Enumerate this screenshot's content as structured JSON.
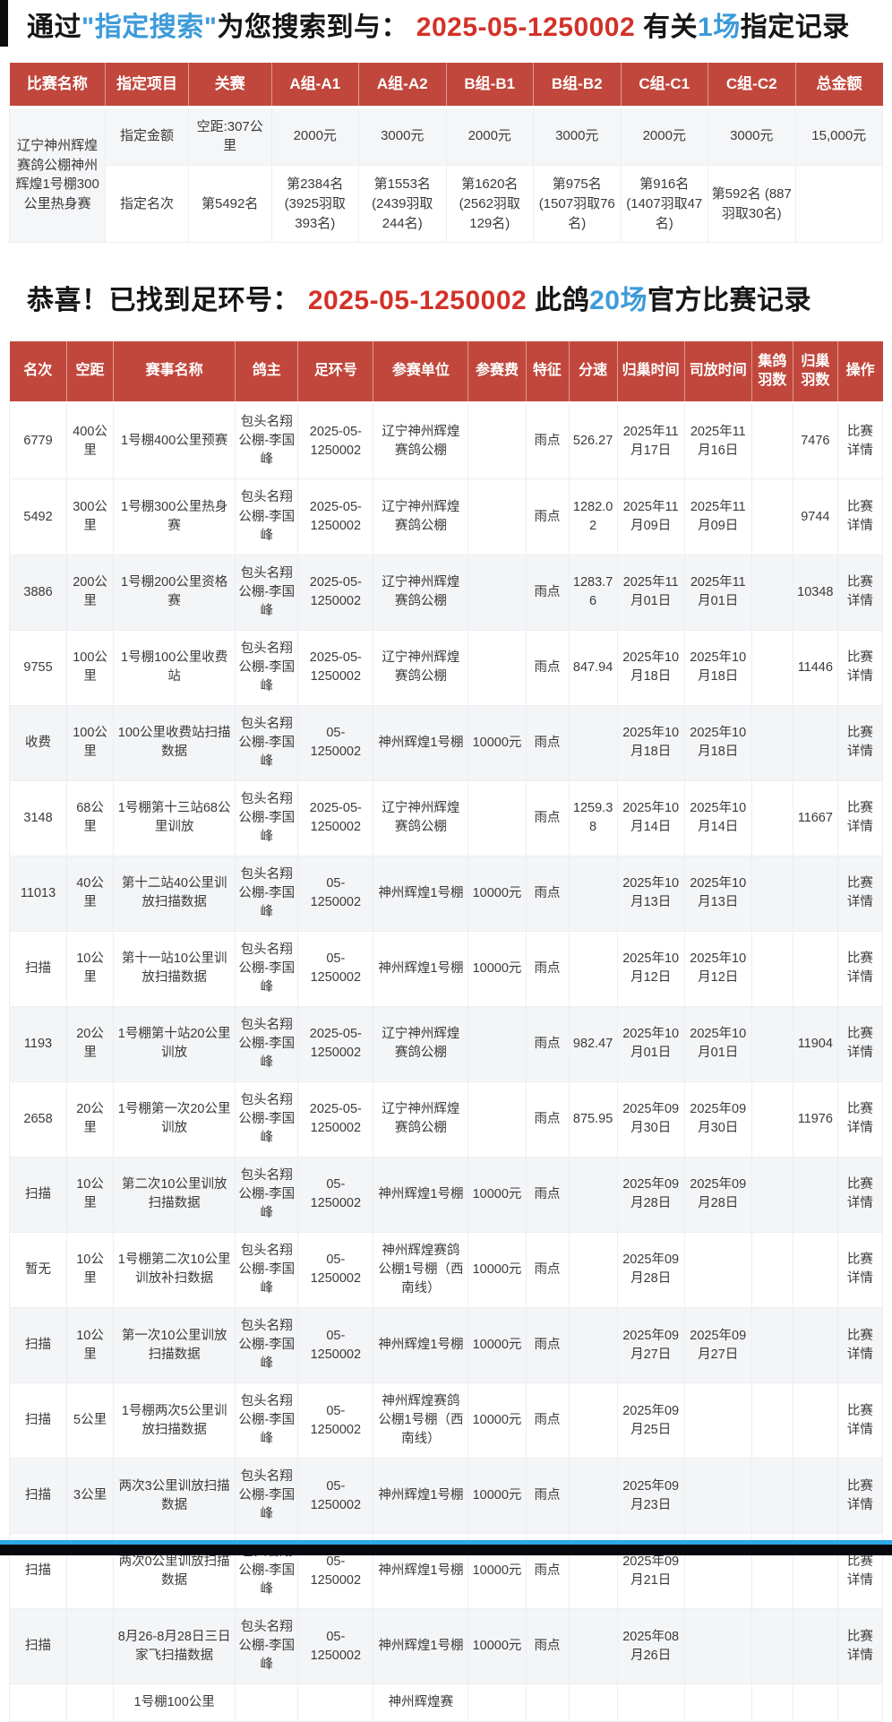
{
  "colors": {
    "header_red": "#c1473c",
    "accent_red": "#d23229",
    "accent_blue": "#3d9bd9",
    "stripe": "#f4f5f7"
  },
  "header1": {
    "parts": [
      {
        "t": "通过",
        "c": "dark"
      },
      {
        "t": "\"指定搜索\"",
        "c": "blue"
      },
      {
        "t": "为您搜索到与： ",
        "c": "dark"
      },
      {
        "t": "2025-05-1250002",
        "c": "red"
      },
      {
        "t": " 有关",
        "c": "dark"
      },
      {
        "t": "1场",
        "c": "blue"
      },
      {
        "t": "指定记录",
        "c": "dark"
      }
    ]
  },
  "table1": {
    "headers": [
      "比赛名称",
      "指定项目",
      "关赛",
      "A组-A1",
      "A组-A2",
      "B组-B1",
      "B组-B2",
      "C组-C1",
      "C组-C2",
      "总金额"
    ],
    "race_name": "辽宁神州辉煌赛鸽公棚神州辉煌1号棚300公里热身赛",
    "row_money": [
      "指定金额",
      "空距:307公里",
      "2000元",
      "3000元",
      "2000元",
      "3000元",
      "2000元",
      "3000元",
      "15,000元"
    ],
    "row_rank": [
      "指定名次",
      "第5492名",
      "第2384名 (3925羽取393名)",
      "第1553名 (2439羽取244名)",
      "第1620名 (2562羽取129名)",
      "第975名 (1507羽取76名)",
      "第916名 (1407羽取47名)",
      "第592名 (887羽取30名)",
      ""
    ]
  },
  "header2": {
    "parts": [
      {
        "t": "恭喜！已找到足环号： ",
        "c": "dark"
      },
      {
        "t": "2025-05-1250002",
        "c": "red"
      },
      {
        "t": " 此鸽",
        "c": "dark"
      },
      {
        "t": "20场",
        "c": "blue"
      },
      {
        "t": "官方比赛记录",
        "c": "dark"
      }
    ]
  },
  "table2": {
    "headers": [
      "名次",
      "空距",
      "赛事名称",
      "鸽主",
      "足环号",
      "参赛单位",
      "参赛费",
      "特征",
      "分速",
      "归巢时间",
      "司放时间",
      "集鸽羽数",
      "归巢羽数",
      "操作"
    ],
    "detail_label": "比赛详情",
    "rows": [
      [
        "6779",
        "400公里",
        "1号棚400公里预赛",
        "包头名翔公棚-李国峰",
        "2025-05-1250002",
        "辽宁神州辉煌赛鸽公棚",
        "",
        "雨点",
        "526.27",
        "2025年11月17日",
        "2025年11月16日",
        "",
        "7476",
        "比赛详情"
      ],
      [
        "5492",
        "300公里",
        "1号棚300公里热身赛",
        "包头名翔公棚-李国峰",
        "2025-05-1250002",
        "辽宁神州辉煌赛鸽公棚",
        "",
        "雨点",
        "1282.02",
        "2025年11月09日",
        "2025年11月09日",
        "",
        "9744",
        "比赛详情"
      ],
      [
        "3886",
        "200公里",
        "1号棚200公里资格赛",
        "包头名翔公棚-李国峰",
        "2025-05-1250002",
        "辽宁神州辉煌赛鸽公棚",
        "",
        "雨点",
        "1283.76",
        "2025年11月01日",
        "2025年11月01日",
        "",
        "10348",
        "比赛详情"
      ],
      [
        "9755",
        "100公里",
        "1号棚100公里收费站",
        "包头名翔公棚-李国峰",
        "2025-05-1250002",
        "辽宁神州辉煌赛鸽公棚",
        "",
        "雨点",
        "847.94",
        "2025年10月18日",
        "2025年10月18日",
        "",
        "11446",
        "比赛详情"
      ],
      [
        "收费",
        "100公里",
        "100公里收费站扫描数据",
        "包头名翔公棚-李国峰",
        "05-1250002",
        "神州辉煌1号棚",
        "10000元",
        "雨点",
        "",
        "2025年10月18日",
        "2025年10月18日",
        "",
        "",
        "比赛详情"
      ],
      [
        "3148",
        "68公里",
        "1号棚第十三站68公里训放",
        "包头名翔公棚-李国峰",
        "2025-05-1250002",
        "辽宁神州辉煌赛鸽公棚",
        "",
        "雨点",
        "1259.38",
        "2025年10月14日",
        "2025年10月14日",
        "",
        "11667",
        "比赛详情"
      ],
      [
        "11013",
        "40公里",
        "第十二站40公里训放扫描数据",
        "包头名翔公棚-李国峰",
        "05-1250002",
        "神州辉煌1号棚",
        "10000元",
        "雨点",
        "",
        "2025年10月13日",
        "2025年10月13日",
        "",
        "",
        "比赛详情"
      ],
      [
        "扫描",
        "10公里",
        "第十一站10公里训放扫描数据",
        "包头名翔公棚-李国峰",
        "05-1250002",
        "神州辉煌1号棚",
        "10000元",
        "雨点",
        "",
        "2025年10月12日",
        "2025年10月12日",
        "",
        "",
        "比赛详情"
      ],
      [
        "1193",
        "20公里",
        "1号棚第十站20公里训放",
        "包头名翔公棚-李国峰",
        "2025-05-1250002",
        "辽宁神州辉煌赛鸽公棚",
        "",
        "雨点",
        "982.47",
        "2025年10月01日",
        "2025年10月01日",
        "",
        "11904",
        "比赛详情"
      ],
      [
        "2658",
        "20公里",
        "1号棚第一次20公里训放",
        "包头名翔公棚-李国峰",
        "2025-05-1250002",
        "辽宁神州辉煌赛鸽公棚",
        "",
        "雨点",
        "875.95",
        "2025年09月30日",
        "2025年09月30日",
        "",
        "11976",
        "比赛详情"
      ],
      [
        "扫描",
        "10公里",
        "第二次10公里训放扫描数据",
        "包头名翔公棚-李国峰",
        "05-1250002",
        "神州辉煌1号棚",
        "10000元",
        "雨点",
        "",
        "2025年09月28日",
        "2025年09月28日",
        "",
        "",
        "比赛详情"
      ],
      [
        "暂无",
        "10公里",
        "1号棚第二次10公里训放补扫数据",
        "包头名翔公棚-李国峰",
        "05-1250002",
        "神州辉煌赛鸽公棚1号棚（西南线）",
        "10000元",
        "雨点",
        "",
        "2025年09月28日",
        "",
        "",
        "",
        "比赛详情"
      ],
      [
        "扫描",
        "10公里",
        "第一次10公里训放扫描数据",
        "包头名翔公棚-李国峰",
        "05-1250002",
        "神州辉煌1号棚",
        "10000元",
        "雨点",
        "",
        "2025年09月27日",
        "2025年09月27日",
        "",
        "",
        "比赛详情"
      ],
      [
        "扫描",
        "5公里",
        "1号棚两次5公里训放扫描数据",
        "包头名翔公棚-李国峰",
        "05-1250002",
        "神州辉煌赛鸽公棚1号棚（西南线）",
        "10000元",
        "雨点",
        "",
        "2025年09月25日",
        "",
        "",
        "",
        "比赛详情"
      ],
      [
        "扫描",
        "3公里",
        "两次3公里训放扫描数据",
        "包头名翔公棚-李国峰",
        "05-1250002",
        "神州辉煌1号棚",
        "10000元",
        "雨点",
        "",
        "2025年09月23日",
        "",
        "",
        "",
        "比赛详情"
      ],
      [
        "扫描",
        "",
        "两次0公里训放扫描数据",
        "包头名翔公棚-李国峰",
        "05-1250002",
        "神州辉煌1号棚",
        "10000元",
        "雨点",
        "",
        "2025年09月21日",
        "",
        "",
        "",
        "比赛详情"
      ],
      [
        "扫描",
        "",
        "8月26-8月28日三日家飞扫描数据",
        "包头名翔公棚-李国峰",
        "05-1250002",
        "神州辉煌1号棚",
        "10000元",
        "雨点",
        "",
        "2025年08月26日",
        "",
        "",
        "",
        "比赛详情"
      ],
      [
        "",
        "",
        "1号棚100公里",
        "",
        "",
        "神州辉煌赛",
        "",
        "",
        "",
        "",
        "",
        "",
        "",
        ""
      ]
    ]
  }
}
